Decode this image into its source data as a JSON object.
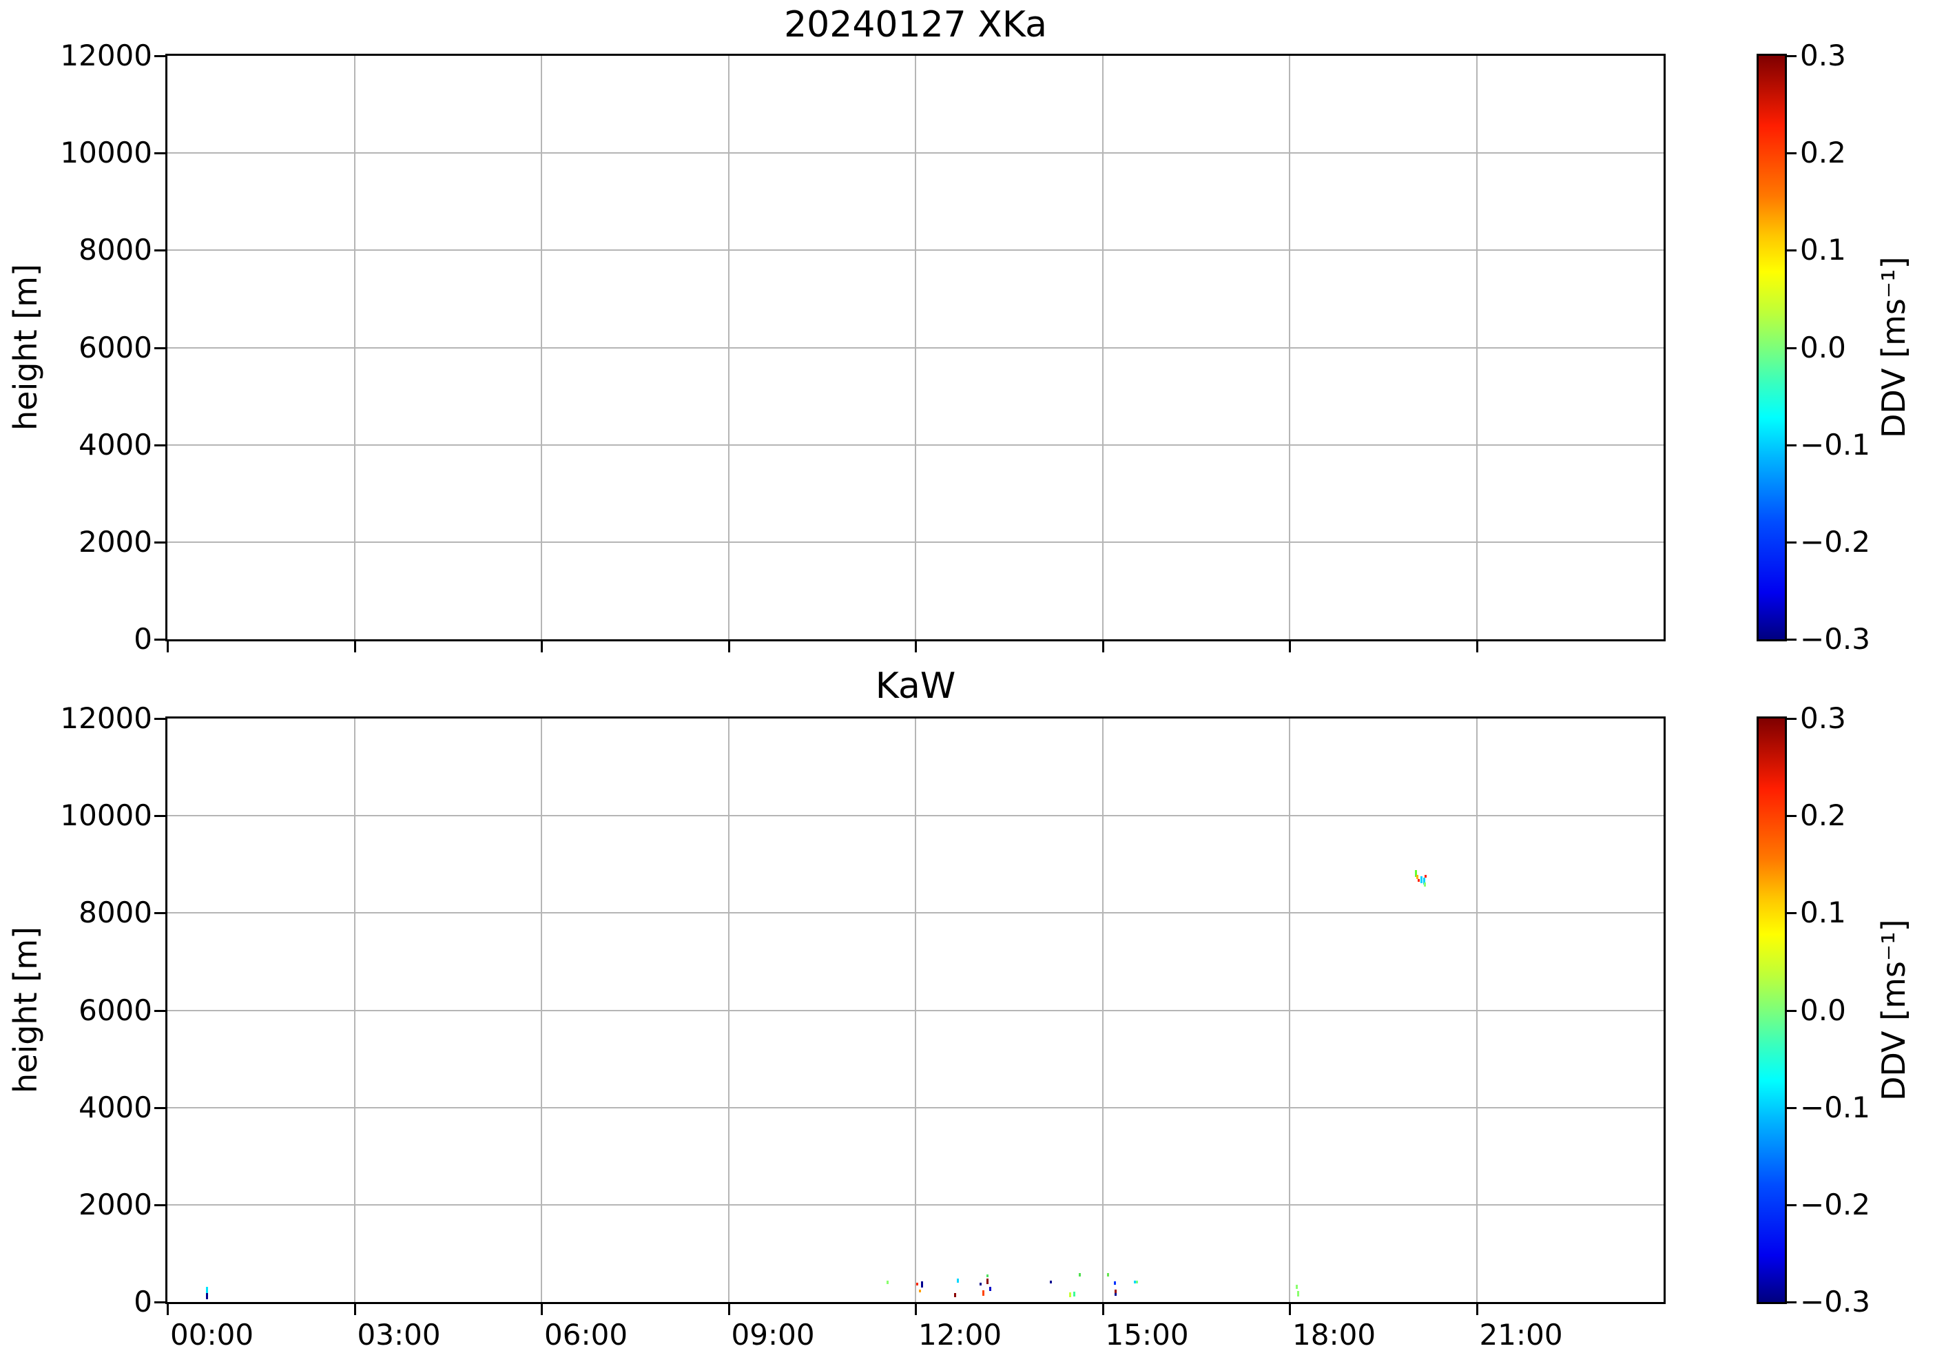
{
  "figure": {
    "background": "#ffffff",
    "grid_color": "#b5b5b5",
    "spine_color": "#000000"
  },
  "colorbar_shared": {
    "label": "DDV [ms⁻¹]",
    "tick_labels": [
      "0.3",
      "0.2",
      "0.1",
      "0.0",
      "−0.1",
      "−0.2",
      "−0.3"
    ],
    "min": -0.3,
    "max": 0.3,
    "colormap": "jet"
  },
  "chart_data": [
    {
      "type": "heatmap",
      "title": "20240127 XKa",
      "xlabel": "",
      "ylabel": "height [m]",
      "x_ticks_hours": [
        0,
        3,
        6,
        9,
        12,
        15,
        18,
        21
      ],
      "x_tick_labels": [
        "00:00",
        "03:00",
        "06:00",
        "09:00",
        "12:00",
        "15:00",
        "18:00",
        "21:00"
      ],
      "show_x_tick_labels": false,
      "x_range_hours": [
        0,
        24
      ],
      "y_ticks": [
        0,
        2000,
        4000,
        6000,
        8000,
        10000,
        12000
      ],
      "ylim": [
        0,
        12000
      ],
      "grid": true,
      "legend": "colorbar right, DDV [ms⁻¹], -0.3 to 0.3, jet",
      "points": []
    },
    {
      "type": "heatmap",
      "title": "KaW",
      "xlabel": "",
      "ylabel": "height [m]",
      "x_ticks_hours": [
        0,
        3,
        6,
        9,
        12,
        15,
        18,
        21
      ],
      "x_tick_labels": [
        "00:00",
        "03:00",
        "06:00",
        "09:00",
        "12:00",
        "15:00",
        "18:00",
        "21:00"
      ],
      "show_x_tick_labels": true,
      "x_range_hours": [
        0,
        24
      ],
      "y_ticks": [
        0,
        2000,
        4000,
        6000,
        8000,
        10000,
        12000
      ],
      "ylim": [
        0,
        12000
      ],
      "grid": true,
      "legend": "colorbar right, DDV [ms⁻¹], -0.3 to 0.3, jet",
      "points": [
        {
          "time_h": 0.63,
          "height_m": 250,
          "extent_m": 120,
          "ddv_ms": -0.09,
          "color": "#00e5ff"
        },
        {
          "time_h": 0.63,
          "height_m": 120,
          "extent_m": 120,
          "ddv_ms": -0.28,
          "color": "#00008b"
        },
        {
          "time_h": 11.55,
          "height_m": 410,
          "extent_m": 70,
          "ddv_ms": 0.02,
          "color": "#8aff6e"
        },
        {
          "time_h": 12.03,
          "height_m": 370,
          "extent_m": 60,
          "ddv_ms": 0.23,
          "color": "#ff2a00"
        },
        {
          "time_h": 12.1,
          "height_m": 360,
          "extent_m": 130,
          "ddv_ms": -0.28,
          "color": "#000090"
        },
        {
          "time_h": 12.07,
          "height_m": 230,
          "extent_m": 60,
          "ddv_ms": 0.14,
          "color": "#ffa000"
        },
        {
          "time_h": 12.68,
          "height_m": 440,
          "extent_m": 90,
          "ddv_ms": -0.1,
          "color": "#00d8ff"
        },
        {
          "time_h": 12.63,
          "height_m": 140,
          "extent_m": 90,
          "ddv_ms": 0.28,
          "color": "#8b0000"
        },
        {
          "time_h": 13.04,
          "height_m": 370,
          "extent_m": 60,
          "ddv_ms": -0.28,
          "color": "#00008b"
        },
        {
          "time_h": 13.15,
          "height_m": 540,
          "extent_m": 60,
          "ddv_ms": 0.01,
          "color": "#4fe060"
        },
        {
          "time_h": 13.15,
          "height_m": 420,
          "extent_m": 110,
          "ddv_ms": 0.28,
          "color": "#8b0000"
        },
        {
          "time_h": 13.09,
          "height_m": 180,
          "extent_m": 110,
          "ddv_ms": 0.2,
          "color": "#ff4400"
        },
        {
          "time_h": 13.2,
          "height_m": 270,
          "extent_m": 90,
          "ddv_ms": -0.24,
          "color": "#0000c8"
        },
        {
          "time_h": 14.17,
          "height_m": 410,
          "extent_m": 60,
          "ddv_ms": -0.28,
          "color": "#000090"
        },
        {
          "time_h": 14.48,
          "height_m": 150,
          "extent_m": 90,
          "ddv_ms": 0.05,
          "color": "#c8ff32"
        },
        {
          "time_h": 14.55,
          "height_m": 160,
          "extent_m": 100,
          "ddv_ms": -0.03,
          "color": "#3cff96"
        },
        {
          "time_h": 14.63,
          "height_m": 560,
          "extent_m": 60,
          "ddv_ms": 0.01,
          "color": "#50e050"
        },
        {
          "time_h": 15.09,
          "height_m": 560,
          "extent_m": 60,
          "ddv_ms": 0.01,
          "color": "#64e650"
        },
        {
          "time_h": 15.2,
          "height_m": 390,
          "extent_m": 80,
          "ddv_ms": -0.2,
          "color": "#0032ff"
        },
        {
          "time_h": 15.21,
          "height_m": 210,
          "extent_m": 80,
          "ddv_ms": 0.27,
          "color": "#960000"
        },
        {
          "time_h": 15.21,
          "height_m": 150,
          "extent_m": 50,
          "ddv_ms": -0.28,
          "color": "#000090"
        },
        {
          "time_h": 15.52,
          "height_m": 410,
          "extent_m": 50,
          "ddv_ms": -0.1,
          "color": "#00d8ff"
        },
        {
          "time_h": 15.55,
          "height_m": 410,
          "extent_m": 50,
          "ddv_ms": 0.0,
          "color": "#78ff78"
        },
        {
          "time_h": 18.12,
          "height_m": 310,
          "extent_m": 90,
          "ddv_ms": 0.02,
          "color": "#8aff6e"
        },
        {
          "time_h": 18.14,
          "height_m": 170,
          "extent_m": 110,
          "ddv_ms": 0.02,
          "color": "#8aff6e"
        },
        {
          "time_h": 20.03,
          "height_m": 8810,
          "extent_m": 140,
          "ddv_ms": 0.03,
          "color": "#64ff32"
        },
        {
          "time_h": 20.05,
          "height_m": 8745,
          "extent_m": 90,
          "ddv_ms": 0.13,
          "color": "#ffb400"
        },
        {
          "time_h": 20.07,
          "height_m": 8665,
          "extent_m": 50,
          "ddv_ms": 0.22,
          "color": "#ff2000"
        },
        {
          "time_h": 20.12,
          "height_m": 8690,
          "extent_m": 140,
          "ddv_ms": -0.1,
          "color": "#00d2ff"
        },
        {
          "time_h": 20.16,
          "height_m": 8660,
          "extent_m": 140,
          "ddv_ms": -0.1,
          "color": "#00d2ff"
        },
        {
          "time_h": 20.18,
          "height_m": 8760,
          "extent_m": 50,
          "ddv_ms": 0.22,
          "color": "#ff2000"
        },
        {
          "time_h": 20.17,
          "height_m": 8585,
          "extent_m": 80,
          "ddv_ms": 0.02,
          "color": "#8aff6e"
        }
      ]
    }
  ]
}
